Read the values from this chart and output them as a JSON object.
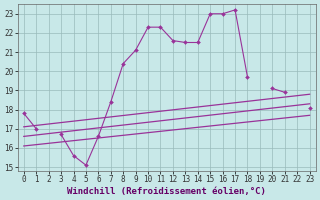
{
  "bg_color": "#c8e8e8",
  "grid_color": "#99bbbb",
  "line_color": "#993399",
  "x_values": [
    0,
    1,
    2,
    3,
    4,
    5,
    6,
    7,
    8,
    9,
    10,
    11,
    12,
    13,
    14,
    15,
    16,
    17,
    18,
    19,
    20,
    21,
    22,
    23
  ],
  "line1": [
    17.8,
    17.0,
    null,
    16.7,
    15.6,
    15.1,
    16.6,
    18.4,
    20.4,
    21.1,
    22.3,
    22.3,
    21.6,
    21.5,
    21.5,
    23.0,
    23.0,
    23.2,
    19.7,
    null,
    19.1,
    18.9,
    null,
    18.1
  ],
  "trend1_x": [
    0,
    23
  ],
  "trend1_y": [
    17.1,
    18.8
  ],
  "trend2_x": [
    0,
    23
  ],
  "trend2_y": [
    16.6,
    18.3
  ],
  "trend3_x": [
    0,
    23
  ],
  "trend3_y": [
    16.1,
    17.7
  ],
  "ylim": [
    14.8,
    23.5
  ],
  "xlim": [
    -0.5,
    23.5
  ],
  "yticks": [
    15,
    16,
    17,
    18,
    19,
    20,
    21,
    22,
    23
  ],
  "xticks": [
    0,
    1,
    2,
    3,
    4,
    5,
    6,
    7,
    8,
    9,
    10,
    11,
    12,
    13,
    14,
    15,
    16,
    17,
    18,
    19,
    20,
    21,
    22,
    23
  ],
  "xlabel": "Windchill (Refroidissement éolien,°C)",
  "tick_fontsize": 5.5,
  "xlabel_fontsize": 6.5
}
